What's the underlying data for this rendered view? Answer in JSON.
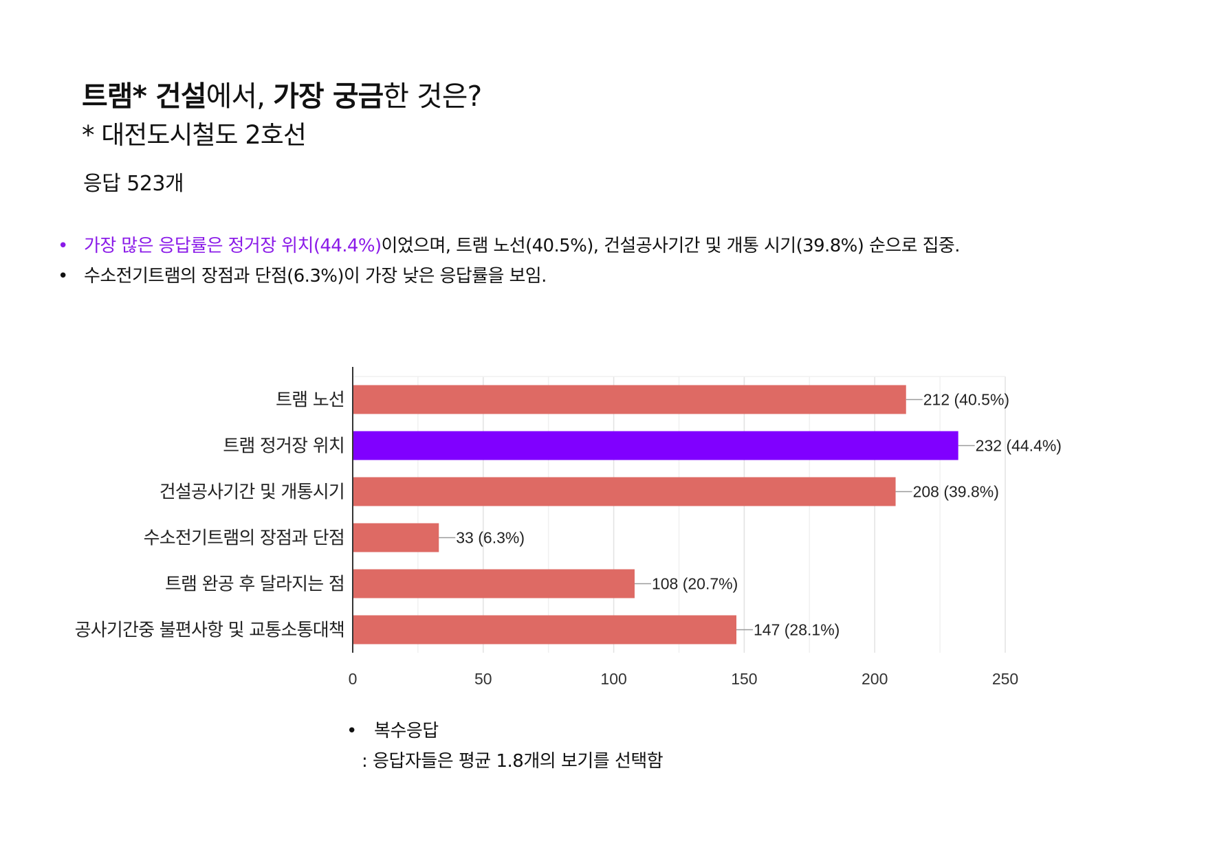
{
  "title": {
    "part1": "트램* 건설",
    "part2": "에서, ",
    "part3": "가장 궁금",
    "part4": "한 것은?"
  },
  "subtitle": "* 대전도시철도 2호선",
  "response_count": "응답 523개",
  "summary": [
    {
      "bullet": "•",
      "highlight": "가장 많은 응답률은 정거장 위치(44.4%)",
      "rest": "이었으며, 트램 노선(40.5%), 건설공사기간 및 개통 시기(39.8%) 순으로 집중."
    },
    {
      "bullet": "•",
      "highlight": "",
      "rest": "수소전기트램의 장점과 단점(6.3%)이 가장 낮은 응답률을 보임."
    }
  ],
  "colors": {
    "bar": "#de6a64",
    "highlight_bar": "#8000ff",
    "highlight_text": "#8a1ae8",
    "grid": "#e6e6e6",
    "axis": "#333333"
  },
  "chart_data": {
    "type": "bar",
    "orientation": "horizontal",
    "categories": [
      "트램 노선",
      "트램 정거장 위치",
      "건설공사기간 및 개통시기",
      "수소전기트램의 장점과 단점",
      "트램 완공 후 달라지는 점",
      "공사기간중 불편사항 및 교통소통대책"
    ],
    "values": [
      212,
      232,
      208,
      33,
      108,
      147
    ],
    "data_labels": [
      "212 (40.5%)",
      "232 (44.4%)",
      "208 (39.8%)",
      "33 (6.3%)",
      "108 (20.7%)",
      "147 (28.1%)"
    ],
    "highlight_index": 1,
    "xlim": [
      0,
      250
    ],
    "xticks": [
      0,
      50,
      100,
      150,
      200,
      250
    ],
    "grid": true
  },
  "notes": {
    "bullet": "•",
    "line1": "복수응답",
    "line2": ": 응답자들은 평균 1.8개의 보기를 선택함"
  }
}
